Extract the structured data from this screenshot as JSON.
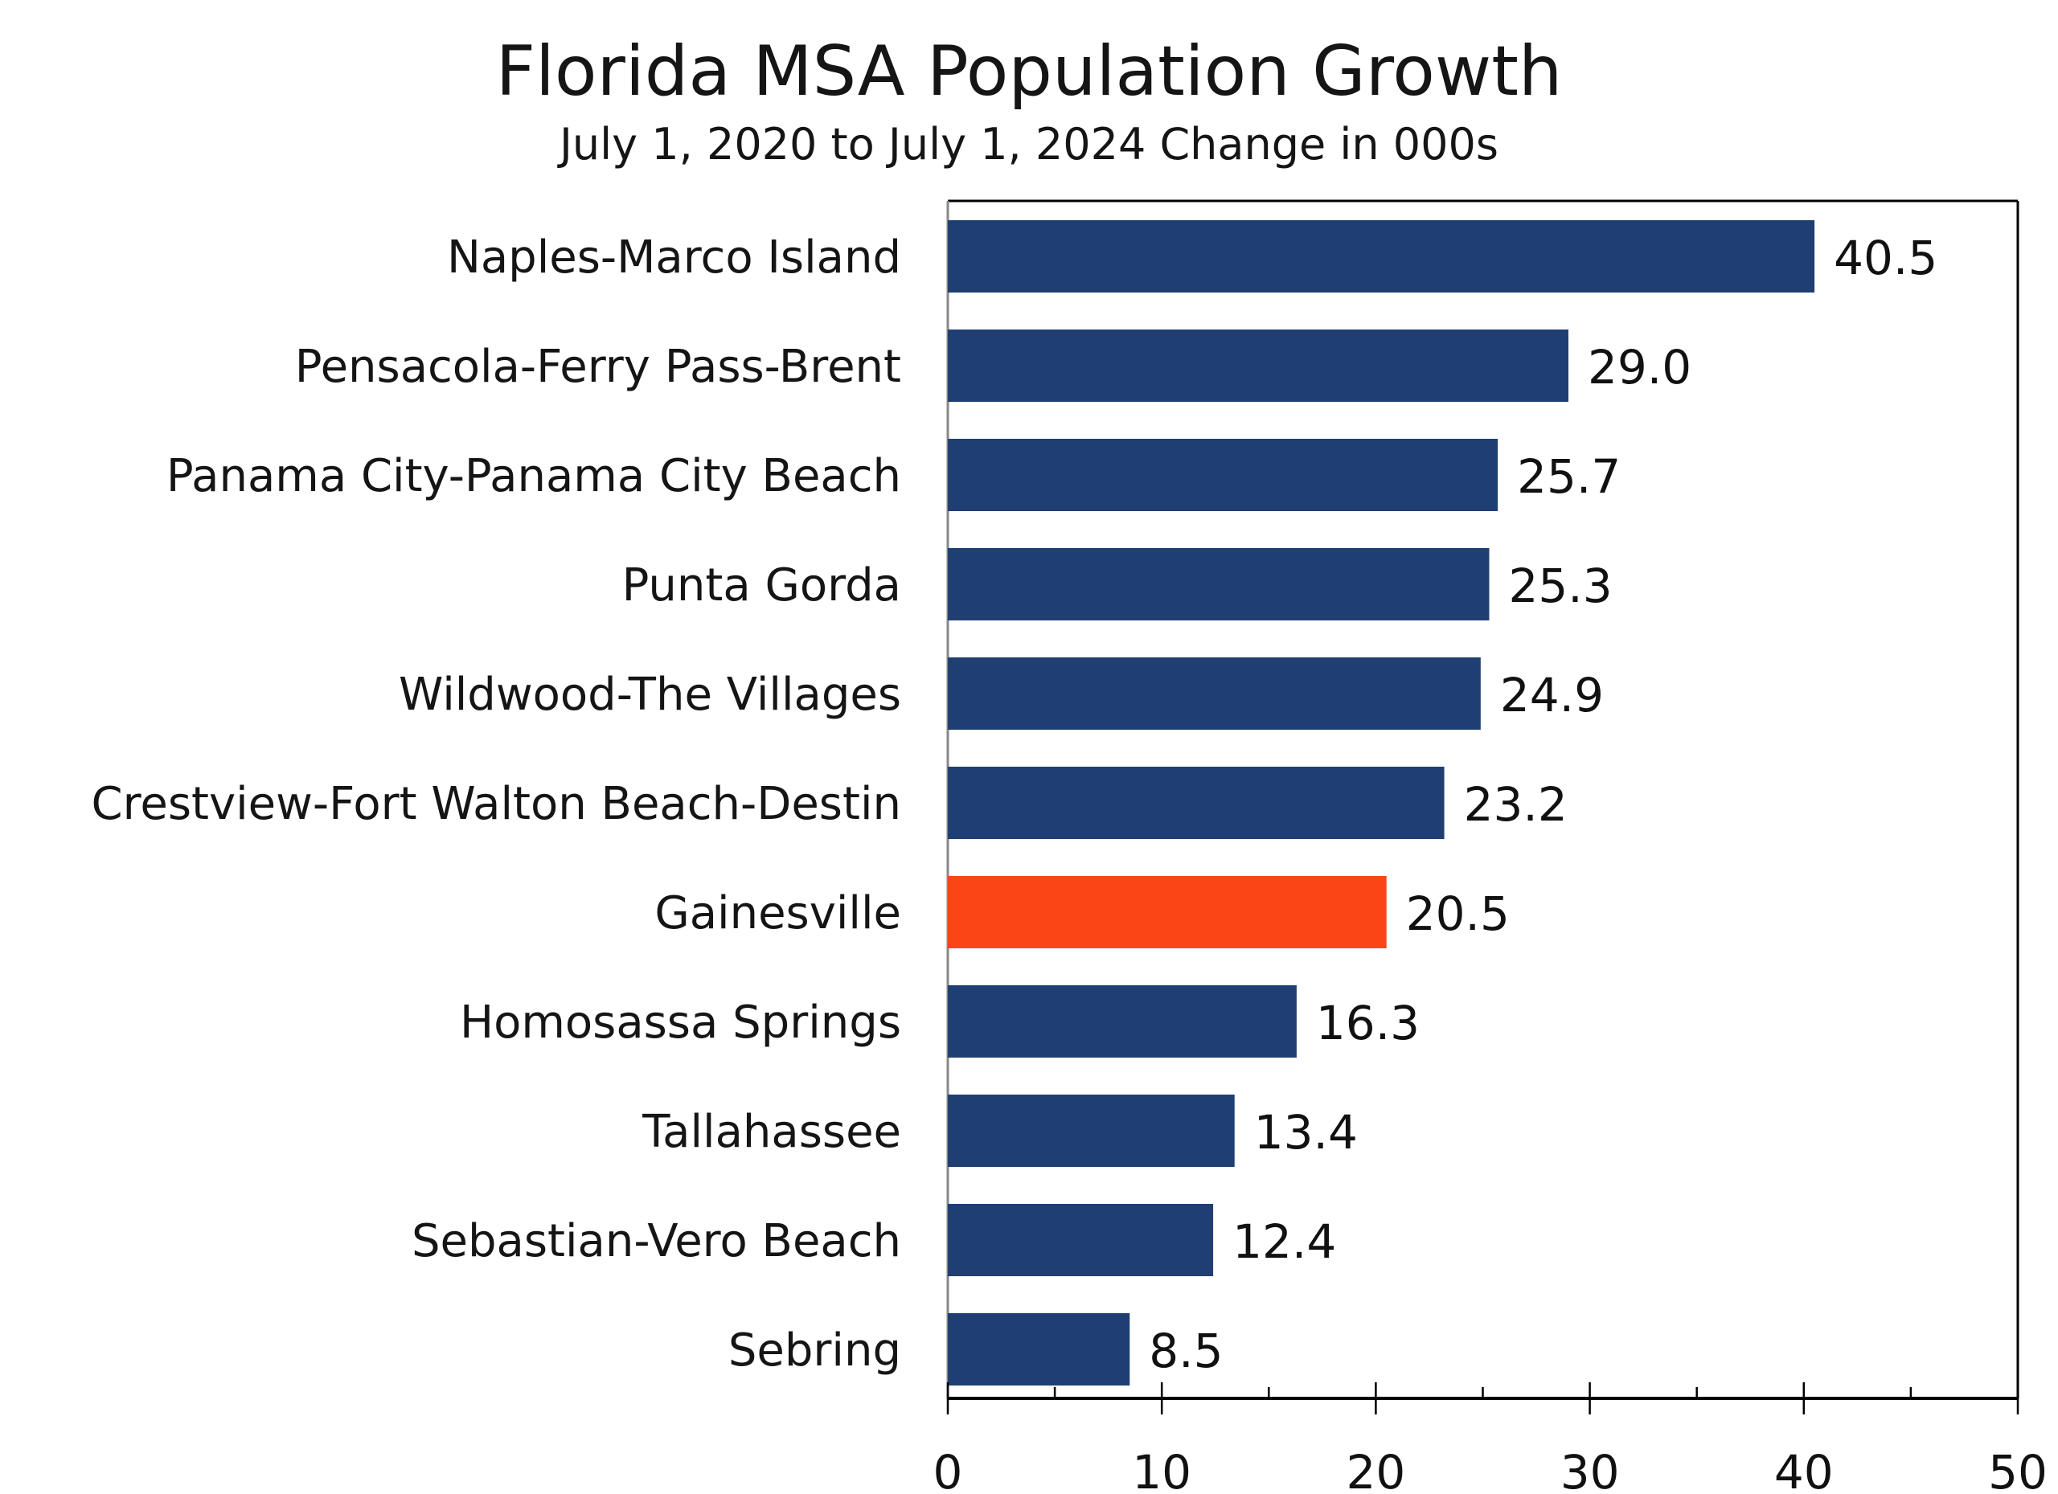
{
  "chart_data": {
    "type": "bar",
    "orientation": "horizontal",
    "title": "Florida MSA Population Growth",
    "subtitle": "July 1, 2020 to July 1, 2024 Change in 000s",
    "xlabel": "",
    "ylabel": "",
    "xlim": [
      0,
      50
    ],
    "major_ticks": [
      0,
      10,
      20,
      30,
      40,
      50
    ],
    "minor_tick_step": 5,
    "tick_labels": [
      "0",
      "10",
      "20",
      "30",
      "40",
      "50"
    ],
    "grid": false,
    "legend": "none",
    "categories": [
      "Naples-Marco Island",
      "Pensacola-Ferry Pass-Brent",
      "Panama City-Panama City Beach",
      "Punta Gorda",
      "Wildwood-The Villages",
      "Crestview-Fort Walton Beach-Destin",
      "Gainesville",
      "Homosassa Springs",
      "Tallahassee",
      "Sebastian-Vero Beach",
      "Sebring"
    ],
    "values": [
      40.5,
      29.0,
      25.7,
      25.3,
      24.9,
      23.2,
      20.5,
      16.3,
      13.4,
      12.4,
      8.5
    ],
    "value_labels": [
      "40.5",
      "29.0",
      "25.7",
      "25.3",
      "24.9",
      "23.2",
      "20.5",
      "16.3",
      "13.4",
      "12.4",
      "8.5"
    ],
    "highlight_category": "Gainesville",
    "colors": {
      "default_bar": "#1f3f73",
      "highlight_bar": "#fa4616",
      "axis": "#000000"
    }
  }
}
